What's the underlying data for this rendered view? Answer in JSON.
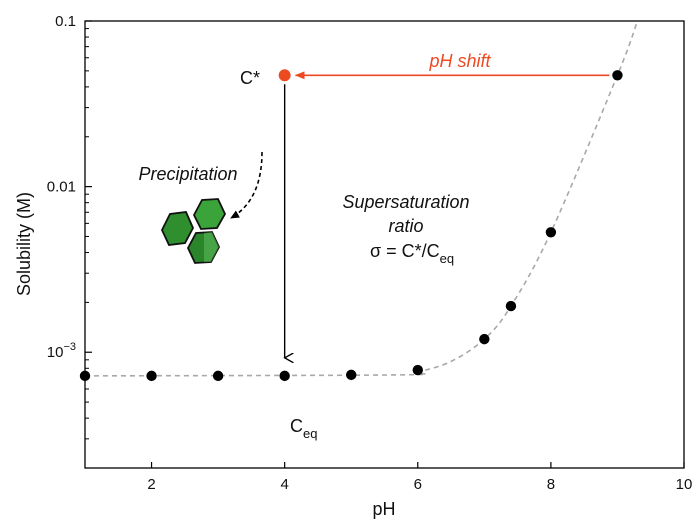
{
  "chart_data": {
    "type": "scatter",
    "xlabel": "pH",
    "ylabel": "Solubility (M)",
    "xlim": [
      1,
      10
    ],
    "ylim": [
      0.0002,
      0.1
    ],
    "y_scale": "log",
    "grid": false,
    "x_ticks": [
      {
        "value": 2,
        "label": "2"
      },
      {
        "value": 4,
        "label": "4"
      },
      {
        "value": 6,
        "label": "6"
      },
      {
        "value": 8,
        "label": "8"
      },
      {
        "value": 10,
        "label": "10"
      }
    ],
    "y_ticks": [
      {
        "value": 0.001,
        "label_base": "10",
        "label_exp": "−3"
      },
      {
        "value": 0.01,
        "label_base": "0.01",
        "label_exp": ""
      },
      {
        "value": 0.1,
        "label_base": "0.1",
        "label_exp": ""
      }
    ],
    "series": [
      {
        "points": [
          {
            "x": 1,
            "y": 0.00072
          },
          {
            "x": 2,
            "y": 0.00072
          },
          {
            "x": 3,
            "y": 0.00072
          },
          {
            "x": 4,
            "y": 0.00072
          },
          {
            "x": 5,
            "y": 0.00073
          },
          {
            "x": 6,
            "y": 0.00078
          },
          {
            "x": 7,
            "y": 0.0012
          },
          {
            "x": 7.4,
            "y": 0.0019
          },
          {
            "x": 8,
            "y": 0.0053
          },
          {
            "x": 9,
            "y": 0.047
          }
        ],
        "color": "#000000"
      }
    ],
    "fit_curve": [
      {
        "x": 1,
        "y": 0.00072
      },
      {
        "x": 5.7,
        "y": 0.00073
      },
      {
        "x": 6,
        "y": 0.00076
      },
      {
        "x": 6.5,
        "y": 0.00088
      },
      {
        "x": 7,
        "y": 0.0012
      },
      {
        "x": 7.4,
        "y": 0.0019
      },
      {
        "x": 8,
        "y": 0.0053
      },
      {
        "x": 9,
        "y": 0.047
      },
      {
        "x": 9.3,
        "y": 0.1
      }
    ],
    "highlight_point": {
      "x": 4,
      "y": 0.047,
      "color": "#ee4a22",
      "label": "C*"
    },
    "annotations": {
      "ph_shift": "pH shift",
      "precipitation": "Precipitation",
      "supersaturation_line1": "Supersaturation",
      "supersaturation_line2": "ratio",
      "sigma_main": "σ = C*/C",
      "sigma_sub": "eq",
      "ceq_main": "C",
      "ceq_sub": "eq"
    },
    "colors": {
      "accent": "#ee4a22",
      "crystal_light": "#3aa33a",
      "crystal_dark": "#1f6e1f",
      "curve": "#a8a8a8"
    }
  }
}
